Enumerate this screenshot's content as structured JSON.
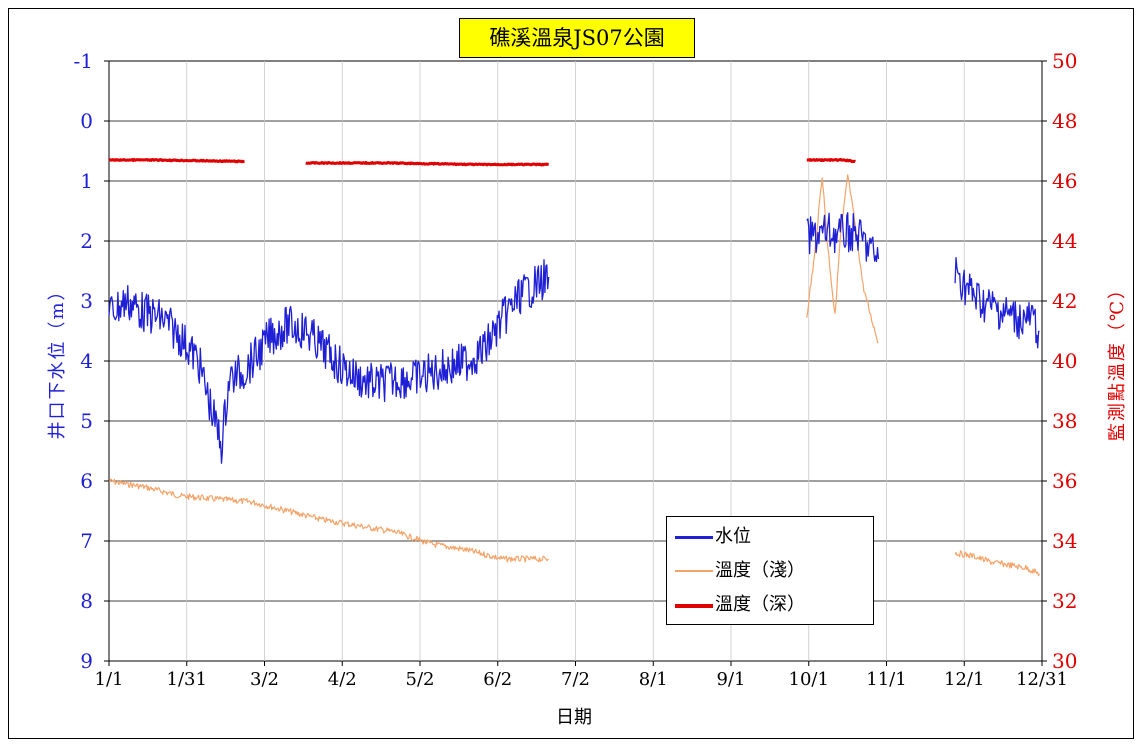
{
  "chart_data": {
    "type": "line",
    "title": "礁溪溫泉JS07公園",
    "xlabel": "日期",
    "ylabel_left": "井口下水位（m）",
    "ylabel_right": "監測點溫度（℃）",
    "x_ticks": [
      "1/1",
      "1/31",
      "3/2",
      "4/2",
      "5/2",
      "6/2",
      "7/2",
      "8/1",
      "9/1",
      "10/1",
      "11/1",
      "12/1",
      "12/31"
    ],
    "y_left_ticks": [
      "-1",
      "0",
      "1",
      "2",
      "3",
      "4",
      "5",
      "6",
      "7",
      "8",
      "9"
    ],
    "y_left_range": [
      -1,
      9
    ],
    "y_left_inverted": true,
    "y_right_ticks": [
      "30",
      "32",
      "34",
      "36",
      "38",
      "40",
      "42",
      "44",
      "46",
      "48",
      "50"
    ],
    "y_right_range": [
      30,
      50
    ],
    "grid": true,
    "legend_position": "bottom-right",
    "colors": {
      "water": "#1f1fd6",
      "shallow": "#f4a46a",
      "deep": "#e00000",
      "title_bg": "#ffff00"
    },
    "series": [
      {
        "name": "水位",
        "axis": "left",
        "segments": [
          [
            {
              "x": "1/1",
              "y": 3.2
            },
            {
              "x": "1/8",
              "y": 3.0
            },
            {
              "x": "1/15",
              "y": 3.2
            },
            {
              "x": "1/22",
              "y": 3.3
            },
            {
              "x": "1/29",
              "y": 3.6
            },
            {
              "x": "2/5",
              "y": 4.0
            },
            {
              "x": "2/10",
              "y": 4.8
            },
            {
              "x": "2/14",
              "y": 5.4
            },
            {
              "x": "2/17",
              "y": 4.3
            },
            {
              "x": "2/22",
              "y": 4.2
            },
            {
              "x": "2/28",
              "y": 3.9
            },
            {
              "x": "3/5",
              "y": 3.6
            },
            {
              "x": "3/12",
              "y": 3.4
            },
            {
              "x": "3/19",
              "y": 3.5
            },
            {
              "x": "3/26",
              "y": 3.8
            },
            {
              "x": "4/2",
              "y": 4.1
            },
            {
              "x": "4/9",
              "y": 4.3
            },
            {
              "x": "4/16",
              "y": 4.4
            },
            {
              "x": "4/23",
              "y": 4.3
            },
            {
              "x": "4/30",
              "y": 4.3
            },
            {
              "x": "5/7",
              "y": 4.2
            },
            {
              "x": "5/14",
              "y": 4.1
            },
            {
              "x": "5/21",
              "y": 4.0
            },
            {
              "x": "5/28",
              "y": 3.8
            },
            {
              "x": "6/4",
              "y": 3.3
            },
            {
              "x": "6/11",
              "y": 2.9
            },
            {
              "x": "6/18",
              "y": 2.7
            },
            {
              "x": "6/22",
              "y": 2.6
            }
          ],
          [
            {
              "x": "10/1",
              "y": 1.95
            },
            {
              "x": "10/5",
              "y": 1.9
            },
            {
              "x": "10/9",
              "y": 1.85
            },
            {
              "x": "10/13",
              "y": 1.9
            },
            {
              "x": "10/17",
              "y": 1.85
            },
            {
              "x": "10/21",
              "y": 1.9
            },
            {
              "x": "10/25",
              "y": 2.1
            },
            {
              "x": "10/29",
              "y": 2.3
            }
          ],
          [
            {
              "x": "11/28",
              "y": 2.5
            },
            {
              "x": "12/3",
              "y": 2.8
            },
            {
              "x": "12/8",
              "y": 3.0
            },
            {
              "x": "12/13",
              "y": 3.1
            },
            {
              "x": "12/18",
              "y": 3.2
            },
            {
              "x": "12/23",
              "y": 3.3
            },
            {
              "x": "12/28",
              "y": 3.3
            },
            {
              "x": "12/31",
              "y": 3.5
            }
          ]
        ]
      },
      {
        "name": "溫度（淺）",
        "axis": "right",
        "segments": [
          [
            {
              "x": "1/1",
              "y": 36.0
            },
            {
              "x": "1/15",
              "y": 35.8
            },
            {
              "x": "1/29",
              "y": 35.5
            },
            {
              "x": "2/12",
              "y": 35.4
            },
            {
              "x": "2/26",
              "y": 35.3
            },
            {
              "x": "3/12",
              "y": 35.0
            },
            {
              "x": "3/26",
              "y": 34.7
            },
            {
              "x": "4/9",
              "y": 34.5
            },
            {
              "x": "4/23",
              "y": 34.3
            },
            {
              "x": "5/7",
              "y": 33.9
            },
            {
              "x": "5/21",
              "y": 33.7
            },
            {
              "x": "6/4",
              "y": 33.4
            },
            {
              "x": "6/22",
              "y": 33.4
            }
          ],
          [
            {
              "x": "10/1",
              "y": 41.5
            },
            {
              "x": "10/4",
              "y": 43.5
            },
            {
              "x": "10/7",
              "y": 46.2
            },
            {
              "x": "10/9",
              "y": 44.0
            },
            {
              "x": "10/12",
              "y": 41.5
            },
            {
              "x": "10/14",
              "y": 44.0
            },
            {
              "x": "10/17",
              "y": 46.2
            },
            {
              "x": "10/20",
              "y": 44.5
            },
            {
              "x": "10/23",
              "y": 42.5
            },
            {
              "x": "10/26",
              "y": 41.5
            },
            {
              "x": "10/29",
              "y": 40.6
            }
          ],
          [
            {
              "x": "11/28",
              "y": 33.6
            },
            {
              "x": "12/5",
              "y": 33.5
            },
            {
              "x": "12/12",
              "y": 33.3
            },
            {
              "x": "12/19",
              "y": 33.2
            },
            {
              "x": "12/26",
              "y": 33.1
            },
            {
              "x": "12/31",
              "y": 32.9
            }
          ]
        ]
      },
      {
        "name": "溫度（深）",
        "axis": "right",
        "segments": [
          [
            {
              "x": "1/1",
              "y": 46.7
            },
            {
              "x": "1/20",
              "y": 46.7
            },
            {
              "x": "2/23",
              "y": 46.65
            }
          ],
          [
            {
              "x": "3/19",
              "y": 46.6
            },
            {
              "x": "4/20",
              "y": 46.6
            },
            {
              "x": "5/25",
              "y": 46.55
            },
            {
              "x": "6/22",
              "y": 46.55
            }
          ],
          [
            {
              "x": "10/1",
              "y": 46.7
            },
            {
              "x": "10/15",
              "y": 46.7
            },
            {
              "x": "10/20",
              "y": 46.65
            }
          ]
        ]
      }
    ]
  }
}
